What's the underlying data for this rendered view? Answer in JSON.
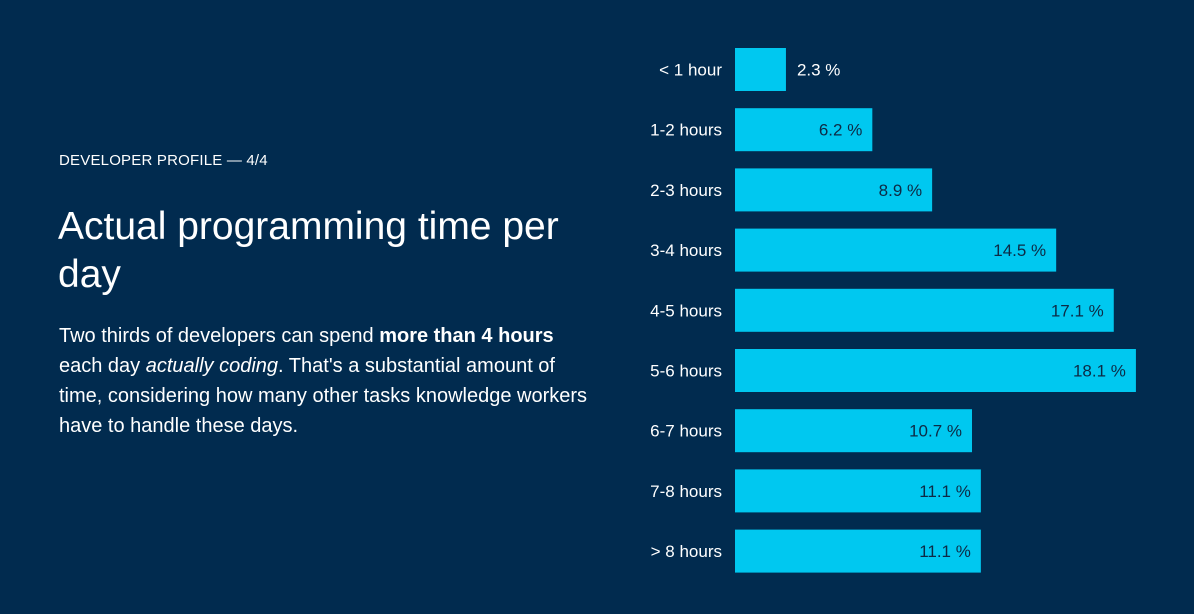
{
  "eyebrow": "DEVELOPER PROFILE — 4/4",
  "title": "Actual programming time per day",
  "body": {
    "part1": "Two thirds of developers can spend ",
    "bold": "more than 4 hours",
    "part2": " each day ",
    "italic": "actually coding",
    "part3": ". That's a substantial amount of time, considering how many other tasks knowledge workers have to handle these days."
  },
  "colors": {
    "background": "#012b4f",
    "bar": "#00c8f0",
    "label_inside": "#0d2a45"
  },
  "chart_data": {
    "type": "bar",
    "orientation": "horizontal",
    "categories": [
      "< 1 hour",
      "1-2 hours",
      "2-3 hours",
      "3-4 hours",
      "4-5 hours",
      "5-6 hours",
      "6-7 hours",
      "7-8 hours",
      "> 8 hours"
    ],
    "values": [
      2.3,
      6.2,
      8.9,
      14.5,
      17.1,
      18.1,
      10.7,
      11.1,
      11.1
    ],
    "value_suffix": " %",
    "title": "",
    "xlabel": "",
    "ylabel": "",
    "grid": false
  }
}
